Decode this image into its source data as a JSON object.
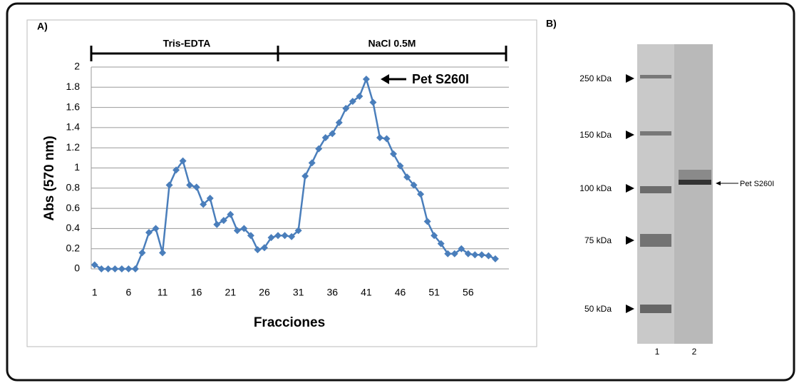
{
  "chart_data": {
    "type": "line",
    "panel_label": "A)",
    "y_label": "Abs (570 nm)",
    "x_label": "Fracciones",
    "annotations": [
      "Tris-EDTA",
      "NaCl 0.5M",
      "Pet S260I"
    ],
    "x": [
      1,
      2,
      3,
      4,
      5,
      6,
      7,
      8,
      9,
      10,
      11,
      12,
      13,
      14,
      15,
      16,
      17,
      18,
      19,
      20,
      21,
      22,
      23,
      24,
      25,
      26,
      27,
      28,
      29,
      30,
      31,
      32,
      33,
      34,
      35,
      36,
      37,
      38,
      39,
      40,
      41,
      42,
      43,
      44,
      45,
      46,
      47,
      48,
      49,
      50,
      51,
      52,
      53,
      54,
      55,
      56,
      57,
      58,
      59,
      60
    ],
    "values": [
      0.04,
      0,
      0,
      0,
      0,
      0,
      0,
      0.16,
      0.36,
      0.4,
      0.16,
      0.83,
      0.98,
      1.07,
      0.83,
      0.81,
      0.64,
      0.7,
      0.44,
      0.48,
      0.54,
      0.38,
      0.4,
      0.33,
      0.19,
      0.21,
      0.31,
      0.33,
      0.33,
      0.32,
      0.38,
      0.92,
      1.05,
      1.19,
      1.3,
      1.34,
      1.45,
      1.59,
      1.66,
      1.71,
      1.88,
      1.65,
      1.3,
      1.29,
      1.14,
      1.02,
      0.91,
      0.83,
      0.74,
      0.47,
      0.33,
      0.25,
      0.15,
      0.15,
      0.2,
      0.15,
      0.14,
      0.14,
      0.13,
      0.1
    ],
    "color": "#4a7ebb",
    "xlim": [
      0.5,
      62
    ],
    "xticks": [
      1,
      6,
      11,
      16,
      21,
      26,
      31,
      36,
      41,
      46,
      51,
      56
    ],
    "ylim": [
      0,
      2
    ],
    "yticks": [
      0,
      0.2,
      0.4,
      0.6,
      0.8,
      1,
      1.2,
      1.4,
      1.6,
      1.8,
      2
    ],
    "grid": true
  },
  "gel": {
    "panel_label": "B)",
    "markers": [
      "250 kDa",
      "150 kDa",
      "100 kDa",
      "75 kDa",
      "50 kDa"
    ],
    "lanes": [
      "1",
      "2"
    ],
    "band_label": "Pet S260I"
  }
}
